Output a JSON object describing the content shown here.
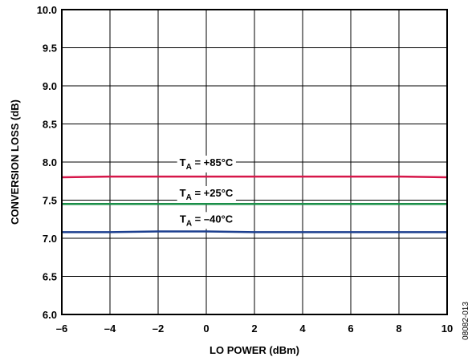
{
  "chart_data": {
    "type": "line",
    "xlabel": "LO POWER (dBm)",
    "ylabel": "CONVERSION LOSS (dB)",
    "xlim": [
      -6,
      10
    ],
    "ylim": [
      6.0,
      10.0
    ],
    "x_ticks": [
      -6,
      -4,
      -2,
      0,
      2,
      4,
      6,
      8,
      10
    ],
    "x_tick_labels": [
      "–6",
      "–4",
      "–2",
      "0",
      "2",
      "4",
      "6",
      "8",
      "10"
    ],
    "y_ticks": [
      6.0,
      6.5,
      7.0,
      7.5,
      8.0,
      8.5,
      9.0,
      9.5,
      10.0
    ],
    "y_tick_labels": [
      "6.0",
      "6.5",
      "7.0",
      "7.5",
      "8.0",
      "8.5",
      "9.0",
      "9.5",
      "10.0"
    ],
    "grid": true,
    "series": [
      {
        "name": "TA = +85°C",
        "color": "#d6174a",
        "x": [
          -6,
          -4,
          -2,
          0,
          2,
          4,
          6,
          8,
          10
        ],
        "values": [
          7.8,
          7.81,
          7.81,
          7.81,
          7.81,
          7.81,
          7.81,
          7.81,
          7.8
        ]
      },
      {
        "name": "TA = +25°C",
        "color": "#1a8f48",
        "x": [
          -6,
          -4,
          -2,
          0,
          2,
          4,
          6,
          8,
          10
        ],
        "values": [
          7.45,
          7.45,
          7.45,
          7.45,
          7.45,
          7.45,
          7.45,
          7.45,
          7.45
        ]
      },
      {
        "name": "TA = –40°C",
        "color": "#1c3f8f",
        "x": [
          -6,
          -4,
          -2,
          0,
          2,
          4,
          6,
          8,
          10
        ],
        "values": [
          7.08,
          7.08,
          7.09,
          7.09,
          7.08,
          7.08,
          7.08,
          7.08,
          7.08
        ]
      }
    ],
    "annotations": [
      {
        "main": "T",
        "sub": "A",
        "rest": " = +85°C",
        "x": 0,
        "y": 8.0
      },
      {
        "main": "T",
        "sub": "A",
        "rest": " = +25°C",
        "x": 0,
        "y": 7.6
      },
      {
        "main": "T",
        "sub": "A",
        "rest": " = –40°C",
        "x": 0,
        "y": 7.26
      }
    ]
  },
  "figure_code": "08082-013"
}
